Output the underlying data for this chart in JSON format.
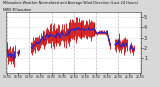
{
  "title": "Milwaukee Weather Normalized and Average Wind Direction (Last 24 Hours)",
  "bg_color": "#d8d8d8",
  "plot_bg_color": "#ffffff",
  "ylim": [
    -0.5,
    5.5
  ],
  "yticks": [
    1,
    2,
    3,
    4,
    5
  ],
  "ytick_labels": [
    "1",
    "2",
    "3",
    "4",
    "5"
  ],
  "grid_color": "#bbbbbb",
  "red_color": "#cc0000",
  "blue_color": "#2222cc",
  "n_points": 144,
  "figsize": [
    1.6,
    0.87
  ],
  "dpi": 100
}
